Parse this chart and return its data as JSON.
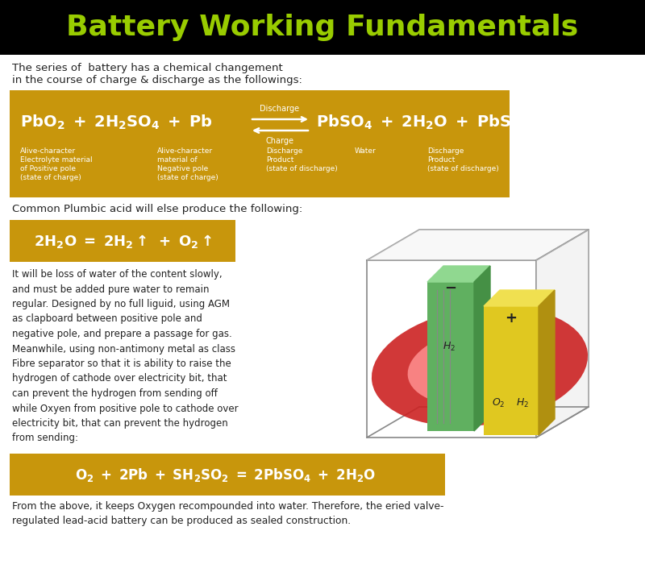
{
  "title": "Battery Working Fundamentals",
  "title_color": "#99cc00",
  "title_bg": "#000000",
  "title_fontsize": 26,
  "bg_color": "#ffffff",
  "golden_color": "#c8960c",
  "text_color_white": "#ffffff",
  "text_color_dark": "#222222",
  "intro_text": "The series of  battery has a chemical changement\nin the course of charge & discharge as the followings:",
  "discharge_label": "Discharge",
  "charge_label": "Charge",
  "label1_col1": "Alive-character\nElectrolyte material\nof Positive pole\n(state of charge)",
  "label1_col2": "Alive-character\nmaterial of\nNegative pole\n(state of charge)",
  "label1_col3": "Discharge\nProduct\n(state of discharge)",
  "label1_col4": "Water",
  "label1_col5": "Discharge\nProduct\n(state of discharge)",
  "common_text": "Common Plumbic acid will else produce the following:",
  "body_text": "It will be loss of water of the content slowly,\nand must be added pure water to remain\nregular. Designed by no full liguid, using AGM\nas clapboard between positive pole and\nnegative pole, and prepare a passage for gas.\nMeanwhile, using non-antimony metal as class\nFibre separator so that it is ability to raise the\nhydrogen of cathode over electricity bit, that\ncan prevent the hydrogen from sending off\nwhile Oxyen from positive pole to cathode over\nelectricity bit, that can prevent the hydrogen\nfrom sending:",
  "footer_text": "From the above, it keeps Oxygen recompounded into water. Therefore, the eried valve-\nregulated lead-acid battery can be produced as sealed construction."
}
